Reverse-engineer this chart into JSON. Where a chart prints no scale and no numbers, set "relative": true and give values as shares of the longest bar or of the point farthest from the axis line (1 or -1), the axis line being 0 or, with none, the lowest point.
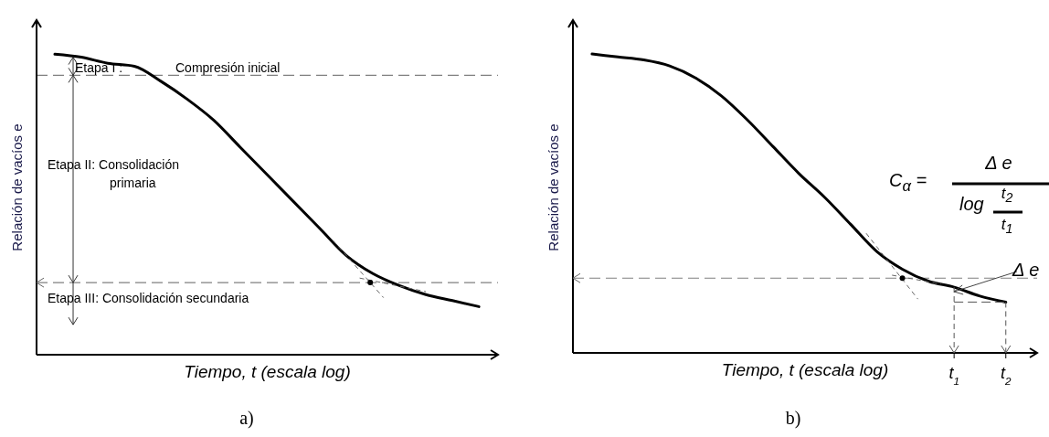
{
  "chart_data": [
    {
      "type": "line",
      "relative": true,
      "categories": [
        null,
        null,
        null,
        null,
        null,
        null,
        null,
        null,
        null,
        null,
        null,
        null,
        null,
        null,
        null,
        null,
        null
      ],
      "series": [
        {
          "color": "#000000",
          "values": [
            1.0,
            0.99,
            0.97,
            0.96,
            0.91,
            0.85,
            0.78,
            0.69,
            0.6,
            0.51,
            0.42,
            0.33,
            0.27,
            0.23,
            0.2,
            0.18,
            0.16
          ]
        }
      ],
      "xlabel": "Tiempo, t (escala log)",
      "ylabel": "Relación de vacíos  e",
      "ref_lines": [
        {
          "axis": "y",
          "value": 0.93,
          "color": "#808080",
          "line_style": "dashed"
        },
        {
          "axis": "y",
          "value": 0.24,
          "color": "#808080",
          "line_style": "dashed"
        }
      ],
      "annotations": [
        "Etapa I :",
        "Compresión inicial",
        "Etapa II: Consolidación",
        "primaria",
        "Etapa III: Consolidación secundaria",
        "a)"
      ]
    },
    {
      "type": "line",
      "relative": true,
      "categories": [
        null,
        null,
        null,
        null,
        null,
        null,
        null,
        null,
        null,
        null,
        null,
        null,
        null,
        null,
        "t$_{1}$",
        null,
        "t$_{2}$"
      ],
      "series": [
        {
          "color": "#000000",
          "values": [
            1.0,
            0.99,
            0.98,
            0.96,
            0.92,
            0.86,
            0.78,
            0.69,
            0.6,
            0.52,
            0.43,
            0.34,
            0.28,
            0.24,
            0.22,
            0.19,
            0.17
          ]
        }
      ],
      "xlabel": "Tiempo, t (escala log)",
      "ylabel": "Relación de vacíos  e",
      "ref_lines": [
        {
          "axis": "y",
          "value": 0.25,
          "color": "#808080",
          "line_style": "dashed"
        }
      ],
      "annotations": [
        "C$_{α}$ =",
        "Δ e",
        "log",
        "t$_{2}$",
        "t$_{1}$",
        "Δ e",
        "b)"
      ]
    }
  ]
}
